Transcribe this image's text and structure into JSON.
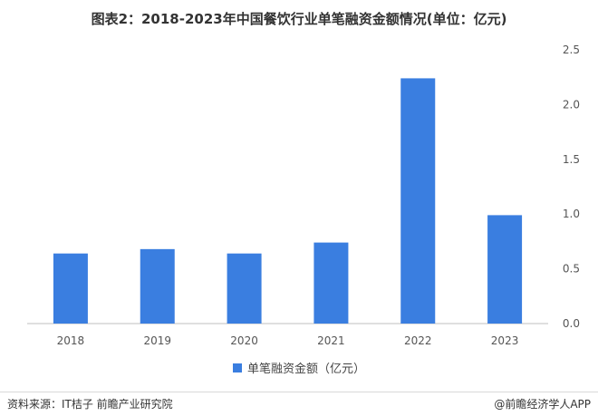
{
  "title": "图表2：2018-2023年中国餐饮行业单笔融资金额情况(单位：亿元)",
  "source": "资料来源：IT桔子 前瞻产业研究院",
  "brand": "@前瞻经济学人APP",
  "chart_data": {
    "type": "bar",
    "categories": [
      "2018",
      "2019",
      "2020",
      "2021",
      "2022",
      "2023"
    ],
    "series": [
      {
        "name": "单笔融资金额（亿元）",
        "values": [
          0.64,
          0.68,
          0.64,
          0.74,
          2.24,
          0.99
        ]
      }
    ],
    "yticks": [
      "0.0",
      "0.5",
      "1.0",
      "1.5",
      "2.0",
      "2.5"
    ],
    "ylim": [
      0,
      2.5
    ],
    "grid": false,
    "legend": "bottom",
    "color": "#3a7ee0"
  }
}
